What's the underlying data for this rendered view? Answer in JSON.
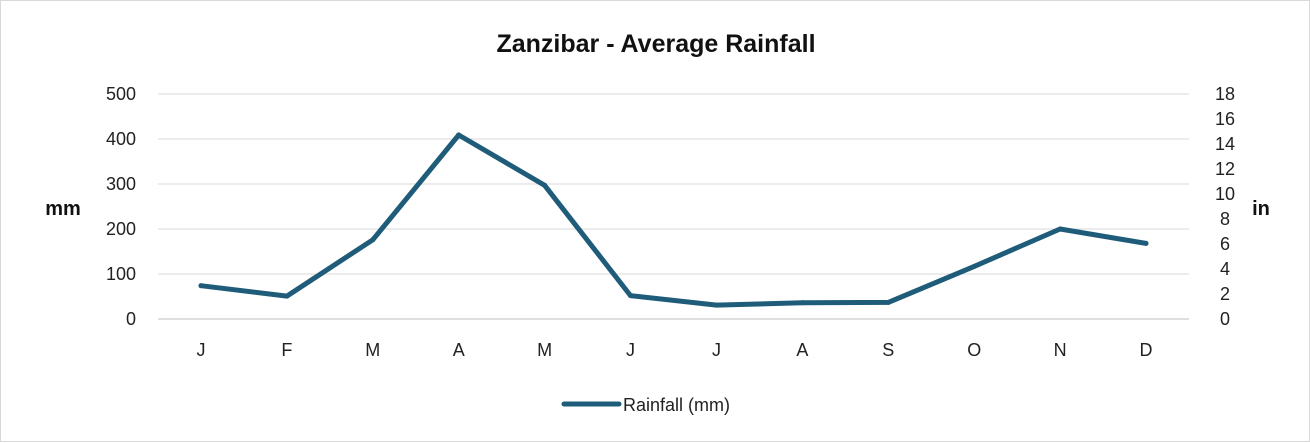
{
  "chart_data": {
    "type": "line",
    "title": "Zanzibar - Average Rainfall",
    "categories": [
      "J",
      "F",
      "M",
      "A",
      "M",
      "J",
      "J",
      "A",
      "S",
      "O",
      "N",
      "D"
    ],
    "series": [
      {
        "name": "Rainfall (mm)",
        "values": [
          74,
          51,
          176,
          409,
          297,
          52,
          31,
          36,
          37,
          117,
          200,
          168
        ]
      }
    ],
    "ylabel": "mm",
    "y2label": "in",
    "ylim": [
      0,
      500
    ],
    "yticks": [
      0,
      100,
      200,
      300,
      400,
      500
    ],
    "y2lim": [
      0,
      18
    ],
    "y2ticks": [
      0,
      2,
      4,
      6,
      8,
      10,
      12,
      14,
      16,
      18
    ],
    "grid": true,
    "legend_position": "bottom",
    "colors": {
      "line": "#1f5c7a",
      "grid": "#d9d9d9",
      "axis": "#bfbfbf"
    }
  }
}
